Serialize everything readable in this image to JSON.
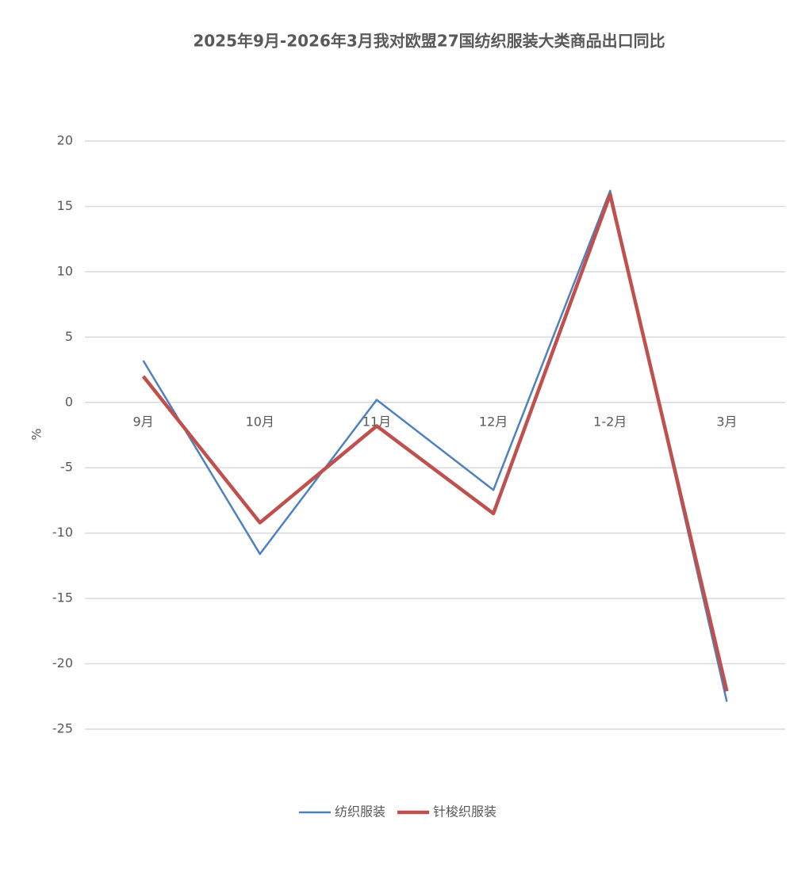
{
  "chart_data": {
    "type": "line",
    "title": "2025年9月-2026年3月我对欧盟27国纺织服装大类商品出口同比",
    "y_label": "%",
    "categories": [
      "9月",
      "10月",
      "11月",
      "12月",
      "1-2月",
      "3月"
    ],
    "series": [
      {
        "name": "纺织服装",
        "color": "#4f81bd",
        "width": 2.5,
        "values": [
          3.2,
          -11.6,
          0.2,
          -6.7,
          16.2,
          -22.9
        ]
      },
      {
        "name": "针梭织服装",
        "color": "#c0504d",
        "width": 4.5,
        "values": [
          2.0,
          -9.2,
          -1.8,
          -8.5,
          15.9,
          -22.1
        ]
      }
    ],
    "ylim": [
      -25,
      20
    ],
    "yticks": [
      -25,
      -20,
      -15,
      -10,
      -5,
      0,
      5,
      10,
      15,
      20
    ],
    "grid": true,
    "legend": "bottom"
  }
}
